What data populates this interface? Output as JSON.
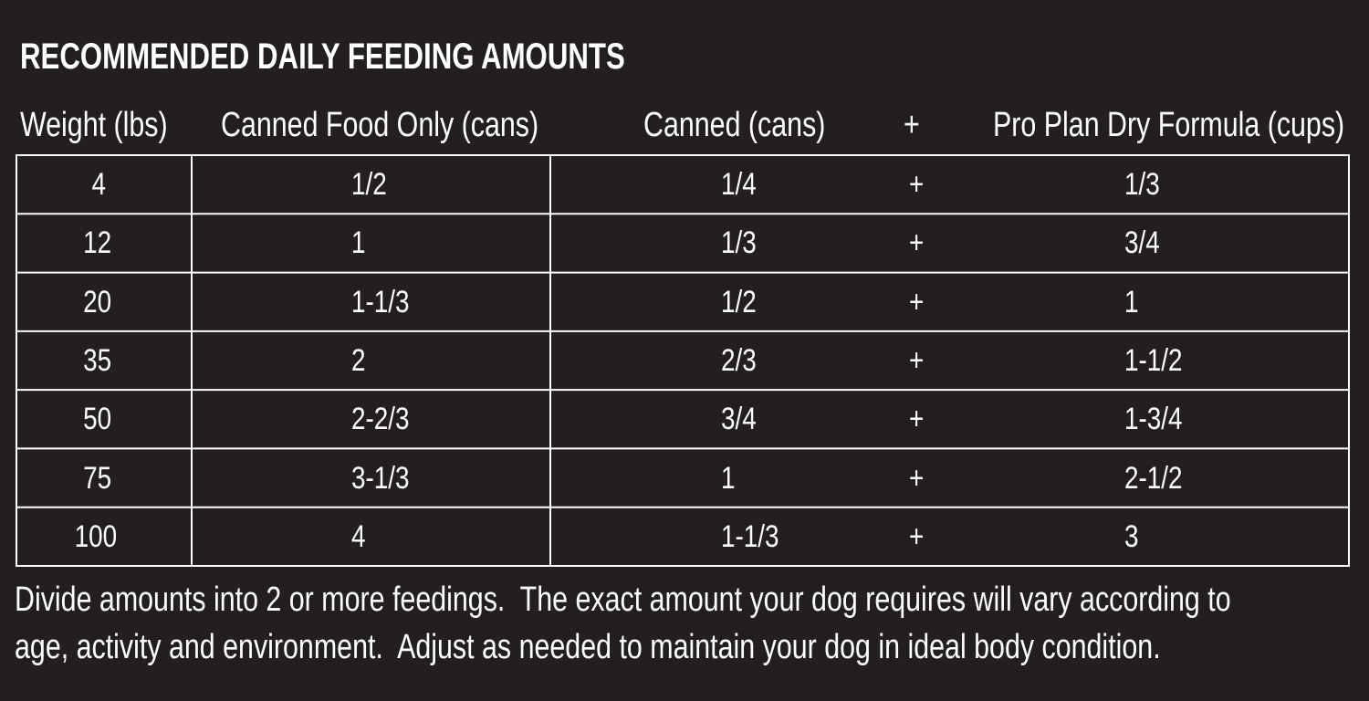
{
  "title": "RECOMMENDED DAILY FEEDING AMOUNTS",
  "table": {
    "header": [
      "Weight (lbs)",
      "Canned Food Only (cans)",
      "Canned (cans)",
      "+",
      "Pro Plan Dry Formula (cups)"
    ],
    "rows": [
      [
        "4",
        "1/2",
        "1/4",
        "+",
        "1/3"
      ],
      [
        "12",
        "1",
        "1/3",
        "+",
        "3/4"
      ],
      [
        "20",
        "1-1/3",
        "1/2",
        "+",
        "1"
      ],
      [
        "35",
        "2",
        "2/3",
        "+",
        "1-1/2"
      ],
      [
        "50",
        "2-2/3",
        "3/4",
        "+",
        "1-3/4"
      ],
      [
        "75",
        "3-1/3",
        "1",
        "+",
        "2-1/2"
      ],
      [
        "100",
        "4",
        "1-1/3",
        "+",
        "3"
      ]
    ]
  },
  "note": {
    "lines": [
      "Divide amounts into 2 or more feedings.  The exact amount your dog requires will vary according to",
      "age, activity and environment.  Adjust as needed to maintain your dog in ideal body condition."
    ]
  }
}
